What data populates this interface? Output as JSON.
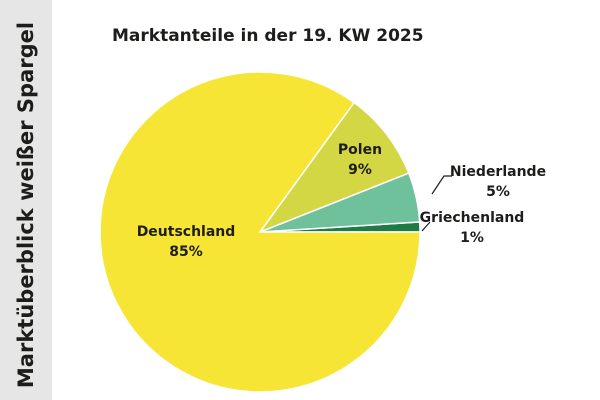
{
  "side_title": "Marktüberblick weißer Spargel",
  "chart_data": {
    "type": "pie",
    "title": "Marktanteile in der 19. KW 2025",
    "slices": [
      {
        "label": "Deutschland",
        "value": 85,
        "value_label": "85%",
        "color": "#f7e535"
      },
      {
        "label": "Polen",
        "value": 9,
        "value_label": "9%",
        "color": "#d3d743"
      },
      {
        "label": "Niederlande",
        "value": 5,
        "value_label": "5%",
        "color": "#6fc19b"
      },
      {
        "label": "Griechenland",
        "value": 1,
        "value_label": "1%",
        "color": "#1f7a45"
      }
    ]
  }
}
